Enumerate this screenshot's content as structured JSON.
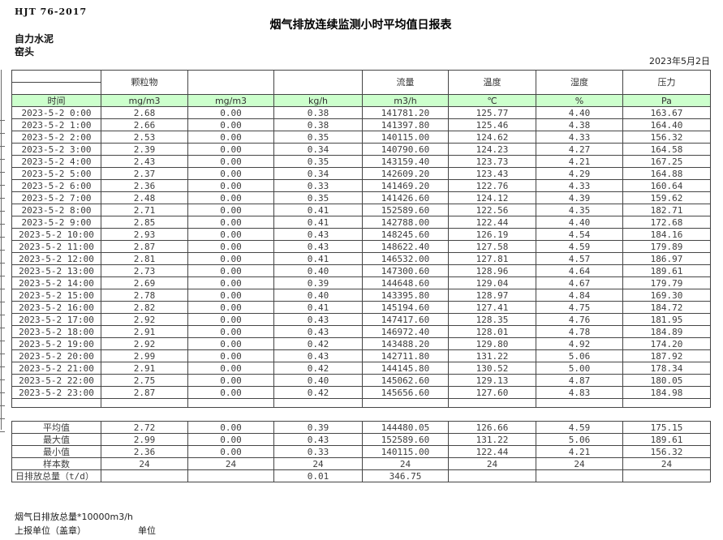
{
  "meta": {
    "standard_code": "HJT  76-2017",
    "title": "烟气排放连续监测小时平均值日报表",
    "company": "自力水泥",
    "station": "窑头",
    "date": "2023年5月2日"
  },
  "colors": {
    "unit_row_green": "#ccffcc",
    "grid_border": "#454545"
  },
  "table": {
    "group_headers": [
      "",
      "颗粒物",
      "",
      "",
      "流量",
      "温度",
      "湿度",
      "压力"
    ],
    "unit_row": [
      "时间",
      "mg/m3",
      "mg/m3",
      "kg/h",
      "m3/h",
      "℃",
      "%",
      "Pa"
    ],
    "rows": [
      [
        "2023-5-2 0:00",
        "2.68",
        "0.00",
        "0.38",
        "141781.20",
        "125.77",
        "4.40",
        "163.67"
      ],
      [
        "2023-5-2 1:00",
        "2.66",
        "0.00",
        "0.38",
        "141397.80",
        "125.46",
        "4.38",
        "164.40"
      ],
      [
        "2023-5-2 2:00",
        "2.53",
        "0.00",
        "0.35",
        "140115.00",
        "124.62",
        "4.33",
        "156.32"
      ],
      [
        "2023-5-2 3:00",
        "2.39",
        "0.00",
        "0.34",
        "140790.60",
        "124.23",
        "4.27",
        "164.58"
      ],
      [
        "2023-5-2 4:00",
        "2.43",
        "0.00",
        "0.35",
        "143159.40",
        "123.73",
        "4.21",
        "167.25"
      ],
      [
        "2023-5-2 5:00",
        "2.37",
        "0.00",
        "0.34",
        "142609.20",
        "123.43",
        "4.29",
        "164.88"
      ],
      [
        "2023-5-2 6:00",
        "2.36",
        "0.00",
        "0.33",
        "141469.20",
        "122.76",
        "4.33",
        "160.64"
      ],
      [
        "2023-5-2 7:00",
        "2.48",
        "0.00",
        "0.35",
        "141426.60",
        "124.12",
        "4.39",
        "159.62"
      ],
      [
        "2023-5-2 8:00",
        "2.71",
        "0.00",
        "0.41",
        "152589.60",
        "122.56",
        "4.35",
        "182.71"
      ],
      [
        "2023-5-2 9:00",
        "2.85",
        "0.00",
        "0.41",
        "142788.00",
        "122.44",
        "4.40",
        "172.68"
      ],
      [
        "2023-5-2 10:00",
        "2.93",
        "0.00",
        "0.43",
        "148245.60",
        "126.19",
        "4.54",
        "184.16"
      ],
      [
        "2023-5-2 11:00",
        "2.87",
        "0.00",
        "0.43",
        "148622.40",
        "127.58",
        "4.59",
        "179.89"
      ],
      [
        "2023-5-2 12:00",
        "2.81",
        "0.00",
        "0.41",
        "146532.00",
        "127.81",
        "4.57",
        "186.97"
      ],
      [
        "2023-5-2 13:00",
        "2.73",
        "0.00",
        "0.40",
        "147300.60",
        "128.96",
        "4.64",
        "189.61"
      ],
      [
        "2023-5-2 14:00",
        "2.69",
        "0.00",
        "0.39",
        "144648.60",
        "129.04",
        "4.67",
        "179.79"
      ],
      [
        "2023-5-2 15:00",
        "2.78",
        "0.00",
        "0.40",
        "143395.80",
        "128.97",
        "4.84",
        "169.30"
      ],
      [
        "2023-5-2 16:00",
        "2.82",
        "0.00",
        "0.41",
        "145194.60",
        "127.41",
        "4.75",
        "184.72"
      ],
      [
        "2023-5-2 17:00",
        "2.92",
        "0.00",
        "0.43",
        "147417.60",
        "128.35",
        "4.76",
        "181.95"
      ],
      [
        "2023-5-2 18:00",
        "2.91",
        "0.00",
        "0.43",
        "146972.40",
        "128.01",
        "4.78",
        "184.89"
      ],
      [
        "2023-5-2 19:00",
        "2.92",
        "0.00",
        "0.42",
        "143488.20",
        "129.80",
        "4.92",
        "174.20"
      ],
      [
        "2023-5-2 20:00",
        "2.99",
        "0.00",
        "0.43",
        "142711.80",
        "131.22",
        "5.06",
        "187.92"
      ],
      [
        "2023-5-2 21:00",
        "2.91",
        "0.00",
        "0.42",
        "144145.80",
        "130.52",
        "5.00",
        "178.34"
      ],
      [
        "2023-5-2 22:00",
        "2.75",
        "0.00",
        "0.40",
        "145062.60",
        "129.13",
        "4.87",
        "180.05"
      ],
      [
        "2023-5-2 23:00",
        "2.87",
        "0.00",
        "0.42",
        "145656.60",
        "127.60",
        "4.83",
        "184.98"
      ]
    ],
    "summary": [
      [
        "平均值",
        "2.72",
        "0.00",
        "0.39",
        "144480.05",
        "126.66",
        "4.59",
        "175.15"
      ],
      [
        "最大值",
        "2.99",
        "0.00",
        "0.43",
        "152589.60",
        "131.22",
        "5.06",
        "189.61"
      ],
      [
        "最小值",
        "2.36",
        "0.00",
        "0.33",
        "140115.00",
        "122.44",
        "4.21",
        "156.32"
      ],
      [
        "样本数",
        "24",
        "24",
        "24",
        "24",
        "24",
        "24",
        "24"
      ],
      [
        "日排放总量（t/d）",
        "",
        "",
        "0.01",
        "346.75",
        "",
        "",
        ""
      ]
    ]
  },
  "footer": {
    "note": "烟气日排放总量*10000m3/h",
    "report_unit_label": "上报单位（盖章）",
    "unit_label": "单位"
  }
}
